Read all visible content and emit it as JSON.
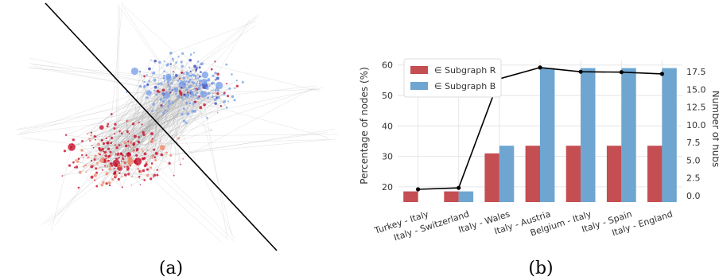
{
  "captions": {
    "a": "(a)",
    "b": "(b)"
  },
  "chart_data": [
    {
      "type": "network",
      "panel": "(a)",
      "description_colors": {
        "cluster_R": "#c8102e",
        "cluster_B": "#7aa0e8",
        "edges": "#9a9a9a",
        "separator": "#000000"
      }
    },
    {
      "type": "bar+line",
      "panel": "(b)",
      "categories": [
        "Turkey - Italy",
        "Italy - Switzerland",
        "Italy - Wales",
        "Italy - Austria",
        "Belgium - Italy",
        "Italy - Spain",
        "Italy - England"
      ],
      "series": [
        {
          "name": "∈ Subgraph R",
          "axis": "left",
          "kind": "bar",
          "color": "#c44e52",
          "values": [
            18.5,
            18.5,
            31,
            33.5,
            33.5,
            33.5,
            33.5
          ]
        },
        {
          "name": "∈ Subgraph B",
          "axis": "left",
          "kind": "bar",
          "color": "#6ea6d1",
          "values": [
            15,
            18.5,
            33.5,
            59,
            59,
            59,
            59
          ]
        },
        {
          "axis": "right",
          "kind": "line",
          "color": "#000000",
          "values": [
            0.9,
            1.1,
            16.5,
            18.1,
            17.5,
            17.45,
            17.2
          ]
        }
      ],
      "ylabel": "Percentage of nodes (%)",
      "y2label": "Number of hubs",
      "ylim": [
        15,
        61.5
      ],
      "y2lim": [
        -0.9,
        19.1
      ],
      "yticks": [
        "20",
        "30",
        "40",
        "50",
        "60"
      ],
      "y2ticks": [
        "0.0",
        "2.5",
        "5.0",
        "7.5",
        "10.0",
        "12.5",
        "15.0",
        "17.5"
      ],
      "legend_position": "top-left",
      "grid": true
    }
  ]
}
